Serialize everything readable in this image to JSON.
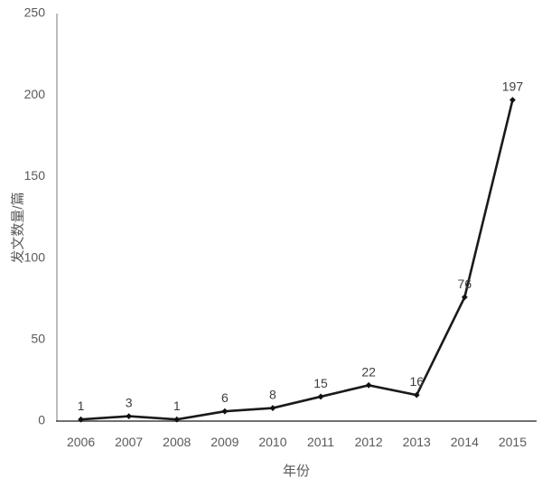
{
  "chart": {
    "xlabel": "年份",
    "ylabel": "发文数量/篇"
  },
  "chart_data": {
    "type": "line",
    "categories": [
      "2006",
      "2007",
      "2008",
      "2009",
      "2010",
      "2011",
      "2012",
      "2013",
      "2014",
      "2015"
    ],
    "values": [
      1,
      3,
      1,
      6,
      8,
      15,
      22,
      16,
      76,
      197
    ],
    "data_labels": [
      "1",
      "3",
      "1",
      "6",
      "8",
      "15",
      "22",
      "16",
      "76",
      "197"
    ],
    "title": "",
    "xlabel": "年份",
    "ylabel": "发文数量/篇",
    "ylim": [
      0,
      250
    ],
    "yticks": [
      0,
      50,
      100,
      150,
      200,
      250
    ],
    "grid": false,
    "legend": "none",
    "marker": "diamond",
    "colors": {
      "line": "#1a1a1a",
      "marker": "#111111",
      "x_axis": "#404040",
      "y_axis": "#a6a6a6",
      "tick_label": "#595959",
      "data_label": "#3d3d3d"
    }
  }
}
